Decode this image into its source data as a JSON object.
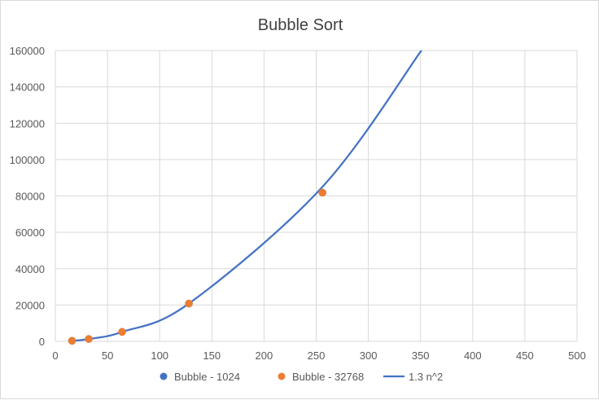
{
  "chart_data": {
    "type": "scatter",
    "title": "Bubble Sort",
    "xlabel": "",
    "ylabel": "",
    "xlim": [
      0,
      500
    ],
    "ylim": [
      0,
      160000
    ],
    "xticks": [
      0,
      50,
      100,
      150,
      200,
      250,
      300,
      350,
      400,
      450,
      500
    ],
    "yticks": [
      0,
      20000,
      40000,
      60000,
      80000,
      100000,
      120000,
      140000,
      160000
    ],
    "grid": true,
    "legend_position": "bottom",
    "series": [
      {
        "name": "Bubble - 1024",
        "type": "scatter",
        "color": "#4472c4",
        "x": [
          16,
          32,
          64,
          128,
          256
        ],
        "y": [
          300,
          1300,
          5200,
          20800,
          81800
        ]
      },
      {
        "name": "Bubble - 32768",
        "type": "scatter",
        "color": "#ed7d31",
        "x": [
          16,
          32,
          64,
          128,
          256
        ],
        "y": [
          300,
          1300,
          5200,
          20800,
          81800
        ]
      },
      {
        "name": "1.3 n^2",
        "type": "line",
        "color": "#4472c4",
        "x": [
          16,
          32,
          64,
          128,
          256,
          352
        ],
        "y": [
          300,
          1300,
          5200,
          20800,
          85000,
          161000
        ]
      }
    ]
  }
}
